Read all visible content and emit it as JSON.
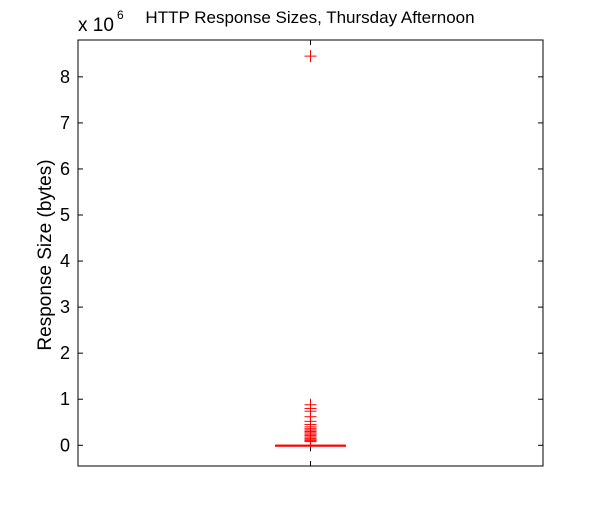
{
  "chart_data": {
    "type": "box",
    "title": "HTTP Response Sizes, Thursday Afternoon",
    "ylabel": "Response Size (bytes)",
    "xlabel": "",
    "y_multiplier_label": "x 10",
    "y_multiplier_exponent": "6",
    "ylim": [
      -0.45,
      8.8
    ],
    "yticks": [
      "0",
      "1",
      "2",
      "3",
      "4",
      "5",
      "6",
      "7",
      "8"
    ],
    "yticks_values": [
      0,
      1,
      2,
      3,
      4,
      5,
      6,
      7,
      8
    ],
    "grid": false,
    "box": {
      "q1": 0.0,
      "median": 0.0,
      "q3": 0.0,
      "whisker_low": 0.0,
      "whisker_high": 0.0
    },
    "outliers": [
      8.45,
      0.88,
      0.8,
      0.74,
      0.62,
      0.52,
      0.45,
      0.4,
      0.36,
      0.33,
      0.3,
      0.27,
      0.24,
      0.21,
      0.18,
      0.15,
      0.12,
      0.1,
      0.08
    ],
    "colors": {
      "box": "#ff0000",
      "outlier": "#ff0000",
      "axes": "#000000"
    }
  }
}
